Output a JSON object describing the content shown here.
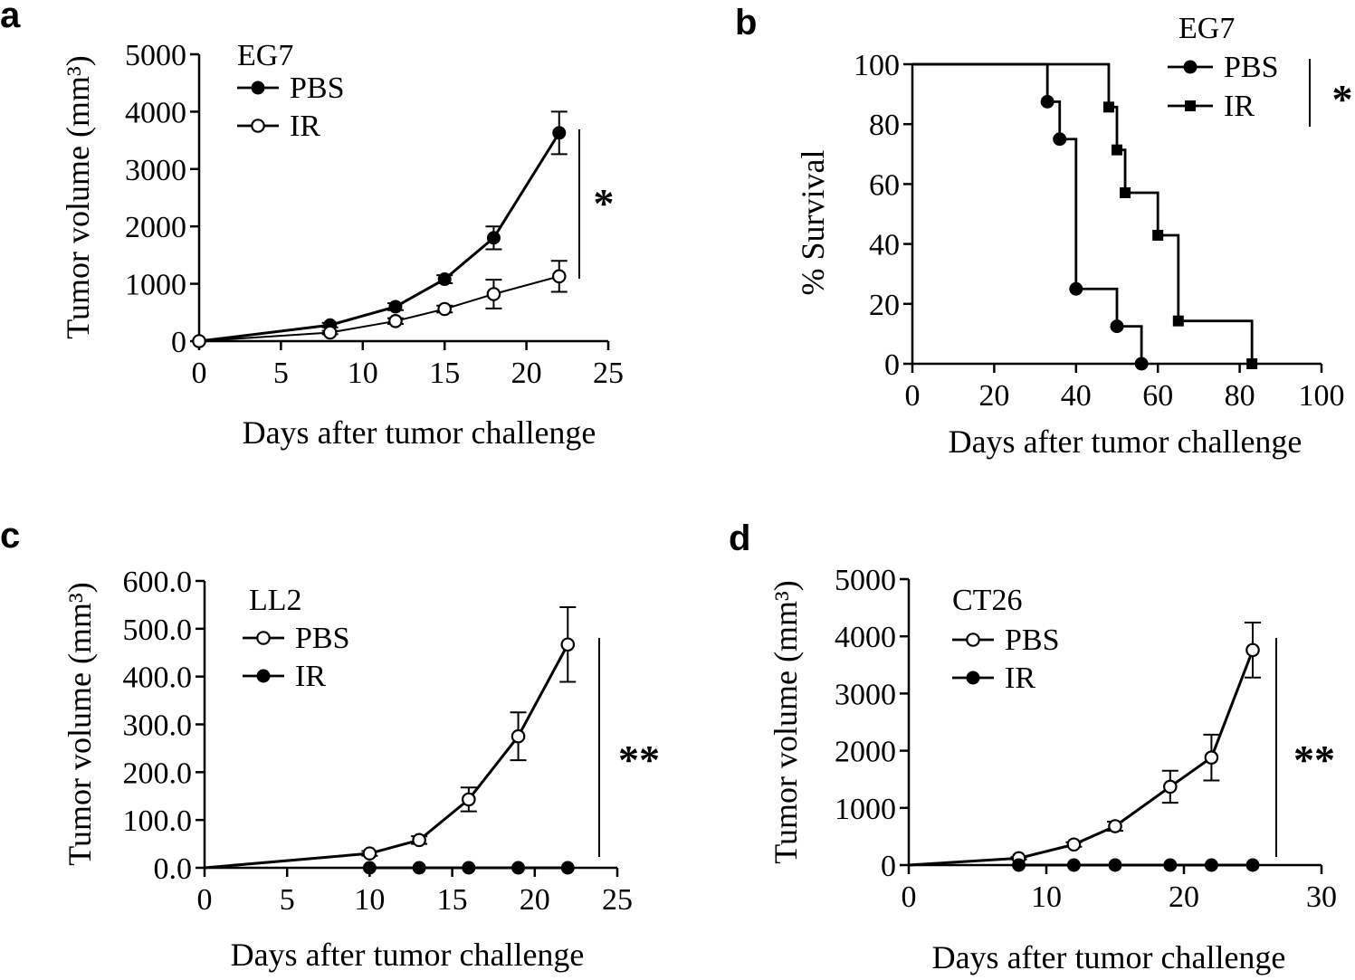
{
  "chart_data": [
    {
      "panel": "a",
      "type": "line",
      "title": "EG7",
      "xlabel": "Days after tumor challenge",
      "ylabel": "Tumor volume (mm³)",
      "xlim": [
        0,
        25
      ],
      "ylim": [
        0,
        5000
      ],
      "xticks": [
        0,
        5,
        10,
        15,
        20,
        25
      ],
      "yticks": [
        0,
        1000,
        2000,
        3000,
        4000,
        5000
      ],
      "xtick_labels": [
        "0",
        "5",
        "10",
        "15",
        "20",
        "25"
      ],
      "ytick_labels": [
        "0",
        "1000",
        "2000",
        "3000",
        "4000",
        "5000"
      ],
      "significance": "*",
      "series": [
        {
          "name": "PBS",
          "marker": "filled-circle",
          "x": [
            0,
            8,
            12,
            15,
            18,
            22
          ],
          "y": [
            0,
            280,
            600,
            1080,
            1800,
            3630
          ],
          "err": [
            0,
            40,
            60,
            70,
            200,
            370
          ]
        },
        {
          "name": "IR",
          "marker": "open-circle",
          "x": [
            0,
            8,
            12,
            15,
            18,
            22
          ],
          "y": [
            0,
            150,
            350,
            560,
            820,
            1130
          ],
          "err": [
            0,
            30,
            50,
            60,
            250,
            270
          ]
        }
      ]
    },
    {
      "panel": "b",
      "type": "line",
      "subtype": "step-survival",
      "title": "EG7",
      "xlabel": "Days after tumor challenge",
      "ylabel": "% Survival",
      "xlim": [
        0,
        100
      ],
      "ylim": [
        0,
        100
      ],
      "xticks": [
        0,
        20,
        40,
        60,
        80,
        100
      ],
      "yticks": [
        0,
        20,
        40,
        60,
        80,
        100
      ],
      "xtick_labels": [
        "0",
        "20",
        "40",
        "60",
        "80",
        "100"
      ],
      "ytick_labels": [
        "0",
        "20",
        "40",
        "60",
        "80",
        "100"
      ],
      "significance": "*",
      "series": [
        {
          "name": "PBS",
          "marker": "filled-circle",
          "x": [
            0,
            33,
            36,
            40,
            50,
            56
          ],
          "y": [
            100,
            87.5,
            75,
            25,
            12.5,
            0
          ],
          "event_x": [
            33,
            36,
            40,
            50,
            56
          ],
          "event_y": [
            87.5,
            75,
            25,
            12.5,
            0
          ]
        },
        {
          "name": "IR",
          "marker": "filled-square",
          "x": [
            0,
            48,
            50,
            52,
            60,
            65,
            83
          ],
          "y": [
            100,
            85.7,
            71.4,
            57.1,
            42.9,
            14.3,
            0
          ],
          "event_x": [
            48,
            50,
            52,
            60,
            65,
            83
          ],
          "event_y": [
            85.7,
            71.4,
            57.1,
            42.9,
            14.3,
            0
          ]
        }
      ]
    },
    {
      "panel": "c",
      "type": "line",
      "title": "LL2",
      "xlabel": "Days after tumor challenge",
      "ylabel": "Tumor volume (mm³)",
      "xlim": [
        0,
        25
      ],
      "ylim": [
        0,
        600
      ],
      "xticks": [
        0,
        5,
        10,
        15,
        20,
        25
      ],
      "yticks": [
        0,
        100,
        200,
        300,
        400,
        500,
        600
      ],
      "xtick_labels": [
        "0",
        "5",
        "10",
        "15",
        "20",
        "25"
      ],
      "ytick_labels": [
        "0.0",
        "100.0",
        "200.0",
        "300.0",
        "400.0",
        "500.0",
        "600.0"
      ],
      "significance": "**",
      "series": [
        {
          "name": "PBS",
          "marker": "open-circle",
          "x": [
            0,
            10,
            13,
            16,
            19,
            22
          ],
          "y": [
            0,
            30,
            58,
            143,
            275,
            467
          ],
          "err": [
            0,
            5,
            8,
            25,
            50,
            78
          ],
          "markers_from": 1
        },
        {
          "name": "IR",
          "marker": "filled-circle",
          "x": [
            10,
            13,
            16,
            19,
            22
          ],
          "y": [
            0,
            0,
            0,
            0,
            0
          ],
          "err": [
            0,
            0,
            0,
            0,
            0
          ],
          "markers_from": 0
        }
      ]
    },
    {
      "panel": "d",
      "type": "line",
      "title": "CT26",
      "xlabel": "Days after tumor challenge",
      "ylabel": "Tumor volume (mm³)",
      "xlim": [
        0,
        30
      ],
      "ylim": [
        0,
        5000
      ],
      "xticks": [
        0,
        10,
        20,
        30
      ],
      "yticks": [
        0,
        1000,
        2000,
        3000,
        4000,
        5000
      ],
      "xtick_labels": [
        "0",
        "10",
        "20",
        "30"
      ],
      "ytick_labels": [
        "0",
        "1000",
        "2000",
        "3000",
        "4000",
        "5000"
      ],
      "significance": "**",
      "series": [
        {
          "name": "PBS",
          "marker": "open-circle",
          "x": [
            0,
            8,
            12,
            15,
            19,
            22,
            25
          ],
          "y": [
            0,
            120,
            360,
            680,
            1370,
            1880,
            3760
          ],
          "err": [
            0,
            20,
            40,
            80,
            280,
            400,
            480
          ],
          "markers_from": 1
        },
        {
          "name": "IR",
          "marker": "filled-circle",
          "x": [
            8,
            12,
            15,
            19,
            22,
            25
          ],
          "y": [
            0,
            0,
            0,
            0,
            0,
            0
          ],
          "err": [
            0,
            0,
            0,
            0,
            0,
            0
          ],
          "markers_from": 0
        }
      ]
    }
  ]
}
